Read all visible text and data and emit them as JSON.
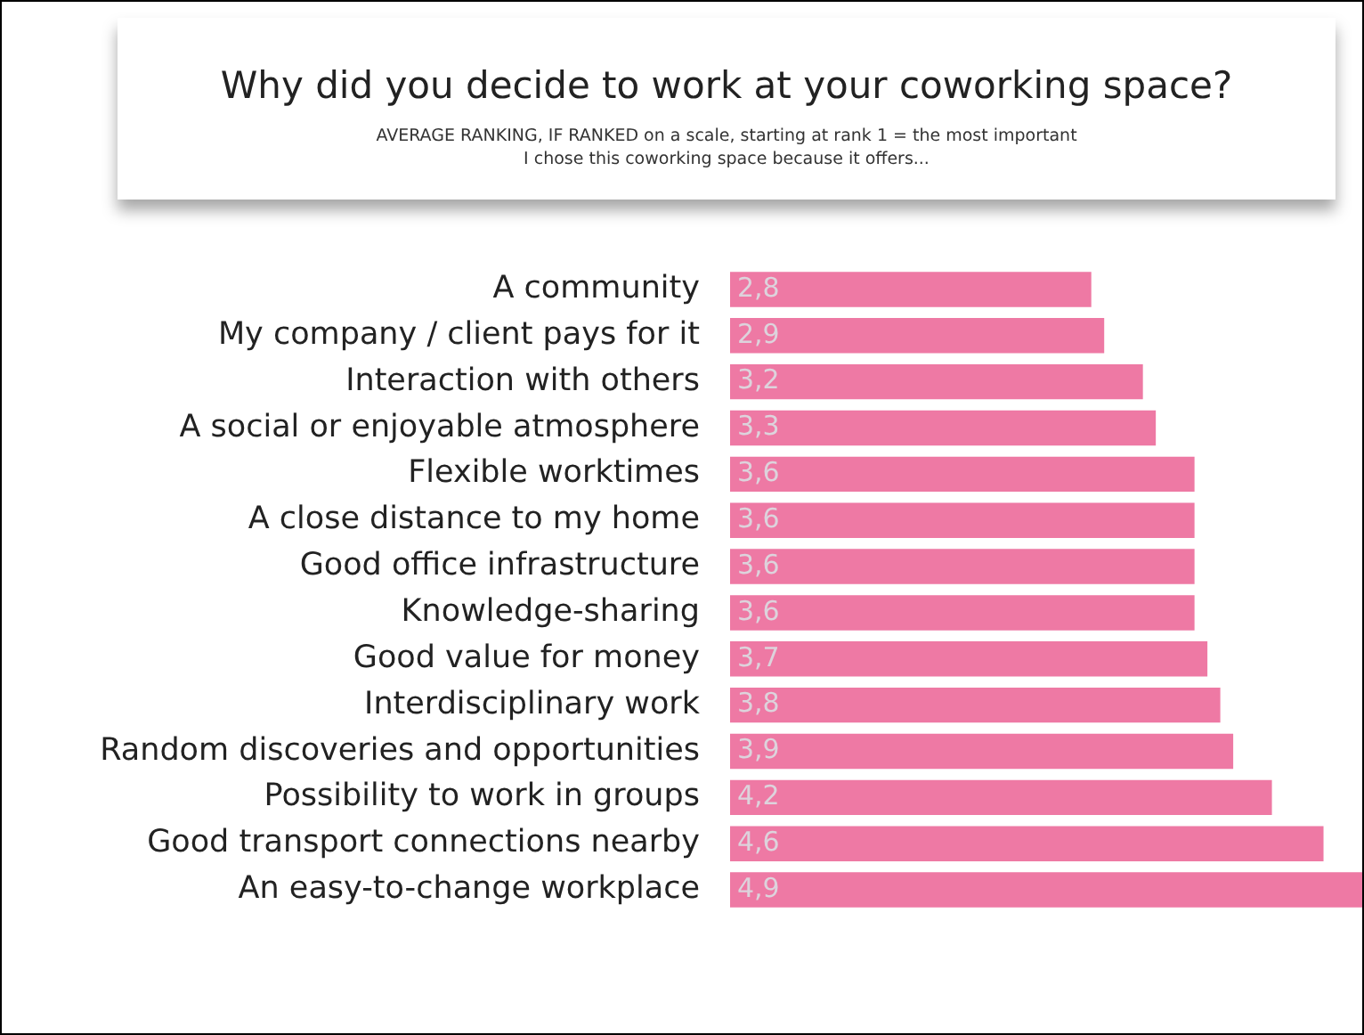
{
  "chart_data": {
    "type": "bar",
    "orientation": "horizontal",
    "title": "Why did you decide to work at your coworking space?",
    "subtitle": "AVERAGE RANKING, IF RANKED on a scale, starting at rank 1 = the most important\nI chose this coworking space because it offers...",
    "categories": [
      "A community",
      "My company / client pays for it",
      "Interaction with others",
      "A social or enjoyable atmosphere",
      "Flexible worktimes",
      "A close distance to my home",
      "Good office infrastructure",
      "Knowledge-sharing",
      "Good value for money",
      "Interdisciplinary work",
      "Random discoveries and opportunities",
      "Possibility to work in groups",
      "Good transport connections nearby",
      "An easy-to-change workplace"
    ],
    "values": [
      2.8,
      2.9,
      3.2,
      3.3,
      3.6,
      3.6,
      3.6,
      3.6,
      3.7,
      3.8,
      3.9,
      4.2,
      4.6,
      4.9
    ],
    "value_labels": [
      "2,8",
      "2,9",
      "3,2",
      "3,3",
      "3,6",
      "3,6",
      "3,6",
      "3,6",
      "3,7",
      "3,8",
      "3,9",
      "4,2",
      "4,6",
      "4,9"
    ],
    "color": "#ee79a4",
    "xlim": [
      0,
      4.9
    ],
    "tick_labels": "y"
  }
}
